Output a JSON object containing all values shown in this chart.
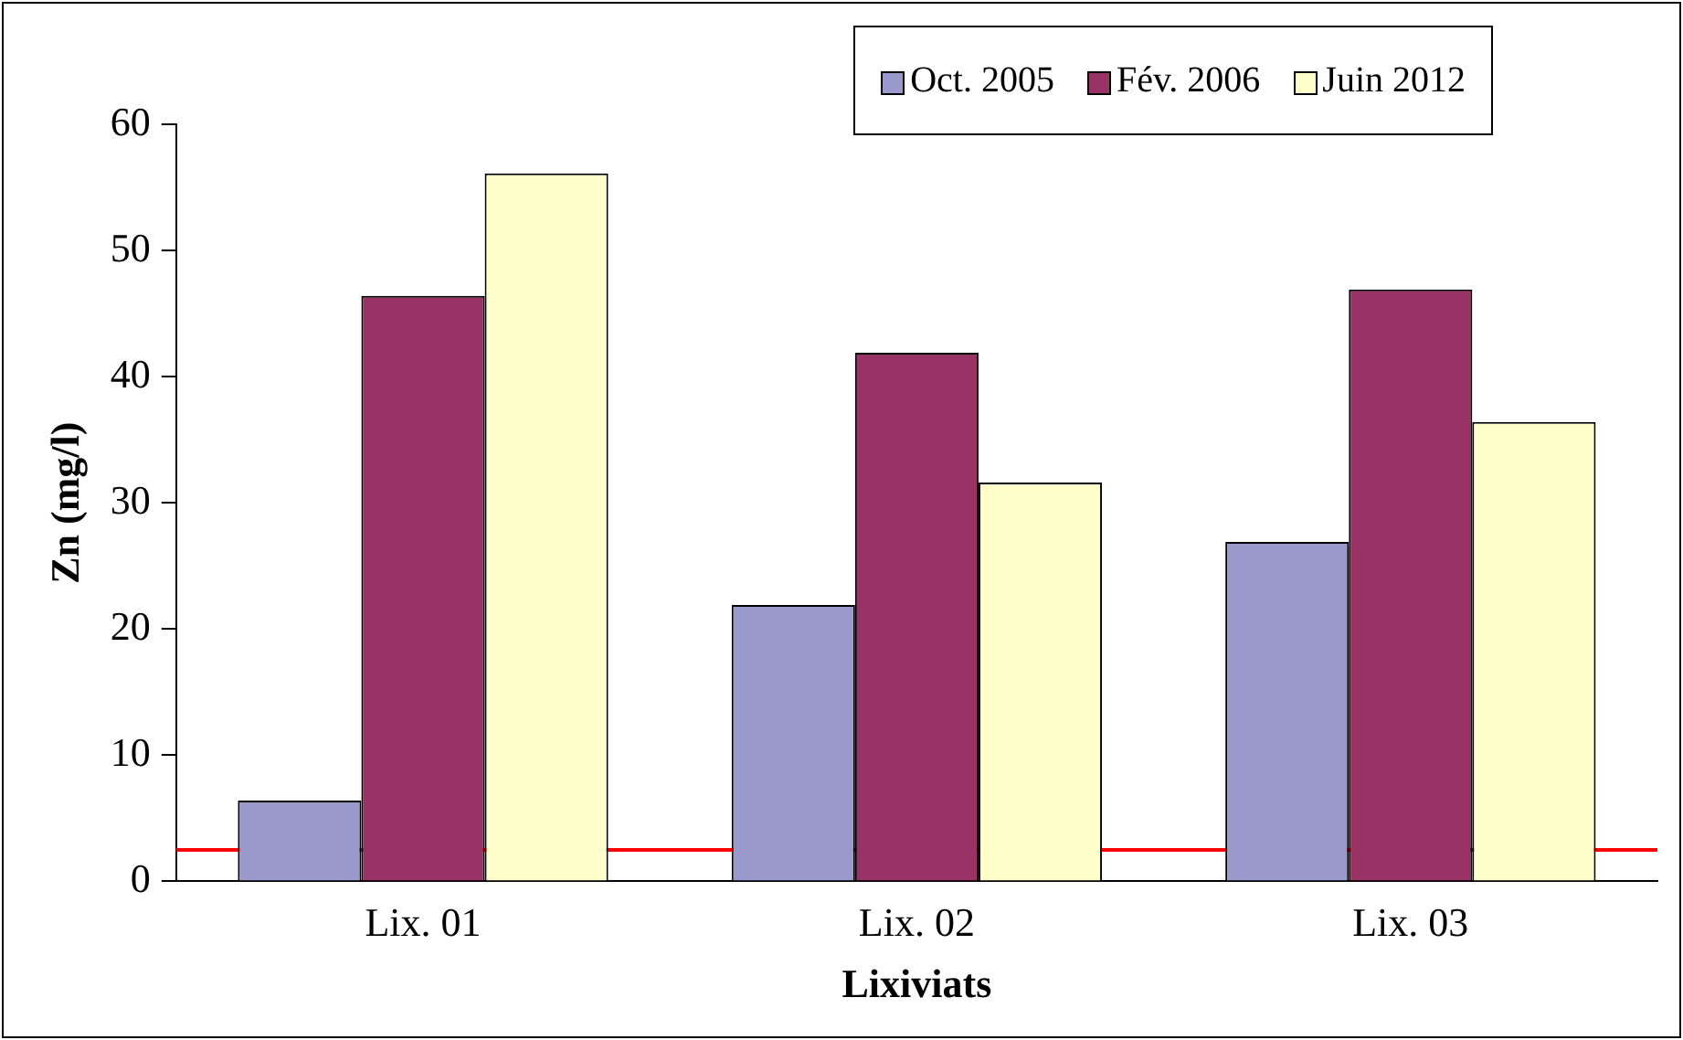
{
  "chart_data": {
    "type": "bar",
    "xlabel": "Lixiviats",
    "ylabel": "Zn (mg/l)",
    "categories": [
      "Lix. 01",
      "Lix. 02",
      "Lix. 03"
    ],
    "series": [
      {
        "name": "Oct. 2005",
        "color": "#9999cc",
        "values": [
          6.4,
          21.9,
          26.9
        ]
      },
      {
        "name": "Fév. 2006",
        "color": "#993366",
        "values": [
          46.4,
          41.9,
          46.9
        ]
      },
      {
        "name": "Juin 2012",
        "color": "#ffffcc",
        "values": [
          56.1,
          31.6,
          36.4
        ]
      }
    ],
    "ylim": [
      0,
      60
    ],
    "yticks": [
      0,
      10,
      20,
      30,
      40,
      50,
      60
    ],
    "grid": false,
    "legend": "top right",
    "ref_lines": [
      {
        "axis": "y",
        "value": 2.5,
        "color": "#ff0000"
      }
    ]
  }
}
